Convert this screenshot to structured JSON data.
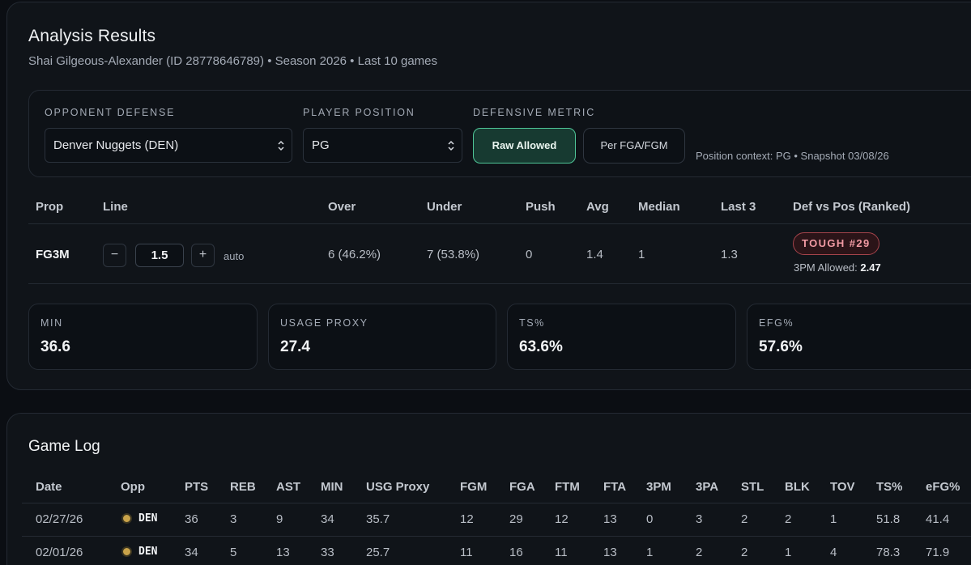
{
  "results": {
    "title": "Analysis Results",
    "subtitle": "Shai Gilgeous-Alexander (ID 28778646789) • Season 2026 • Last 10 games",
    "filters": {
      "opponent_label": "OPPONENT DEFENSE",
      "opponent_value": "Denver Nuggets (DEN)",
      "position_label": "PLAYER POSITION",
      "position_value": "PG",
      "metric_label": "DEFENSIVE METRIC",
      "metric_options": [
        "Raw Allowed",
        "Per FGA/FGM"
      ],
      "metric_selected": "Raw Allowed",
      "context": "Position context: PG • Snapshot 03/08/26"
    },
    "prop_table": {
      "headers": [
        "Prop",
        "Line",
        "Over",
        "Under",
        "Push",
        "Avg",
        "Median",
        "Last 3",
        "Def vs Pos (Ranked)"
      ],
      "row": {
        "prop": "FG3M",
        "line": "1.5",
        "minus": "−",
        "plus": "+",
        "auto": "auto",
        "over": "6 (46.2%)",
        "under": "7 (53.8%)",
        "push": "0",
        "avg": "1.4",
        "median": "1",
        "last3": "1.3",
        "badge": "TOUGH #29",
        "allowed_label": "3PM Allowed:",
        "allowed_value": "2.47"
      }
    },
    "stats": [
      {
        "label": "MIN",
        "value": "36.6"
      },
      {
        "label": "USAGE PROXY",
        "value": "27.4"
      },
      {
        "label": "TS%",
        "value": "63.6%"
      },
      {
        "label": "EFG%",
        "value": "57.6%"
      }
    ]
  },
  "gamelog": {
    "title": "Game Log",
    "headers": [
      "Date",
      "Opp",
      "PTS",
      "REB",
      "AST",
      "MIN",
      "USG Proxy",
      "FGM",
      "FGA",
      "FTM",
      "FTA",
      "3PM",
      "3PA",
      "STL",
      "BLK",
      "TOV",
      "TS%",
      "eFG%"
    ],
    "rows": [
      [
        "02/27/26",
        "DEN",
        "36",
        "3",
        "9",
        "34",
        "35.7",
        "12",
        "29",
        "12",
        "13",
        "0",
        "3",
        "2",
        "2",
        "1",
        "51.8",
        "41.4"
      ],
      [
        "02/01/26",
        "DEN",
        "34",
        "5",
        "13",
        "33",
        "25.7",
        "11",
        "16",
        "11",
        "13",
        "1",
        "2",
        "2",
        "1",
        "4",
        "78.3",
        "71.9"
      ]
    ]
  },
  "colors": {
    "accent": "#4fc597",
    "badge": "#f19aa3",
    "background": "#0b0e13",
    "card": "#101419"
  }
}
